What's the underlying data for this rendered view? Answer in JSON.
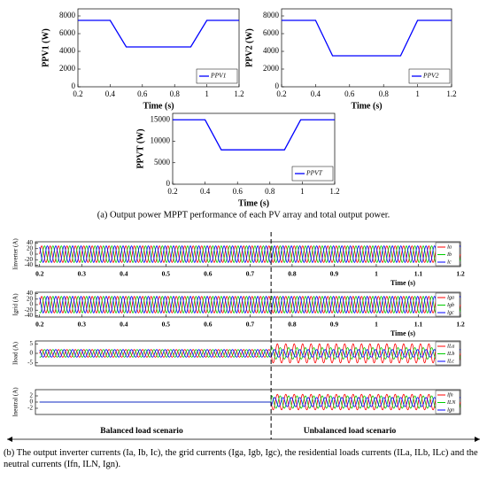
{
  "chart_data": [
    {
      "type": "line",
      "ylabel": "PPV1 (W)",
      "xlabel": "Time (s)",
      "xlim": [
        0.2,
        1.2
      ],
      "xticks": [
        0.2,
        0.4,
        0.6,
        0.8,
        1,
        1.2
      ],
      "ylim": [
        0,
        8800
      ],
      "yticks": [
        0,
        2000,
        4000,
        6000,
        8000
      ],
      "x": [
        0.2,
        0.4,
        0.5,
        0.9,
        1.0,
        1.2
      ],
      "series": [
        {
          "name": "PPV1",
          "color": "#0000ff",
          "values": [
            7500,
            7500,
            4500,
            4500,
            7500,
            7500
          ]
        }
      ]
    },
    {
      "type": "line",
      "ylabel": "PPV2 (W)",
      "xlabel": "Time (s)",
      "xlim": [
        0.2,
        1.2
      ],
      "xticks": [
        0.2,
        0.4,
        0.6,
        0.8,
        1,
        1.2
      ],
      "ylim": [
        0,
        8800
      ],
      "yticks": [
        0,
        2000,
        4000,
        6000,
        8000
      ],
      "x": [
        0.2,
        0.4,
        0.5,
        0.9,
        1.0,
        1.2
      ],
      "series": [
        {
          "name": "PPV2",
          "color": "#0000ff",
          "values": [
            7500,
            7500,
            3500,
            3500,
            7500,
            7500
          ]
        }
      ]
    },
    {
      "type": "line",
      "ylabel": "PPVT (W)",
      "xlabel": "Time (s)",
      "xlim": [
        0.2,
        1.2
      ],
      "xticks": [
        0.2,
        0.4,
        0.6,
        0.8,
        1,
        1.2
      ],
      "ylim": [
        0,
        16500
      ],
      "yticks": [
        0,
        5000,
        10000,
        15000
      ],
      "x": [
        0.2,
        0.4,
        0.5,
        0.89,
        0.99,
        1.2
      ],
      "series": [
        {
          "name": "PPVT",
          "color": "#0000ff",
          "values": [
            15000,
            15000,
            8000,
            8000,
            15000,
            15000
          ]
        }
      ]
    },
    {
      "type": "sine",
      "ylabel": "Iinverter (A)",
      "xlabel": "Time (s)",
      "xlim": [
        0.19,
        1.2
      ],
      "xticks": [
        0.2,
        0.3,
        0.4,
        0.5,
        0.6,
        0.7,
        0.8,
        0.9,
        1,
        1.1,
        1.2
      ],
      "ylim": [
        -45,
        45
      ],
      "yticks": [
        -40,
        -20,
        0,
        20,
        40
      ],
      "frequency": 50,
      "x": [
        0.2,
        0.75,
        1.2
      ],
      "series": [
        {
          "name": "Ia",
          "color": "#ff0000",
          "phase": 0,
          "amplitude": [
            30,
            30
          ]
        },
        {
          "name": "Ib",
          "color": "#00cc00",
          "phase": -120,
          "amplitude": [
            30,
            30
          ]
        },
        {
          "name": "Ic",
          "color": "#0000ff",
          "phase": 120,
          "amplitude": [
            30,
            30
          ]
        }
      ]
    },
    {
      "type": "sine",
      "ylabel": "Igrid (A)",
      "xlabel": "Time (s)",
      "xlim": [
        0.19,
        1.2
      ],
      "xticks": [
        0.2,
        0.3,
        0.4,
        0.5,
        0.6,
        0.7,
        0.8,
        0.9,
        1,
        1.1,
        1.2
      ],
      "ylim": [
        -45,
        45
      ],
      "yticks": [
        -40,
        -20,
        0,
        20,
        40
      ],
      "frequency": 50,
      "x": [
        0.2,
        0.75,
        1.2
      ],
      "series": [
        {
          "name": "Iga",
          "color": "#ff0000",
          "phase": 0,
          "amplitude": [
            30,
            30
          ]
        },
        {
          "name": "Igb",
          "color": "#00cc00",
          "phase": -120,
          "amplitude": [
            30,
            30
          ]
        },
        {
          "name": "Igc",
          "color": "#0000ff",
          "phase": 120,
          "amplitude": [
            30,
            30
          ]
        }
      ]
    },
    {
      "type": "sine",
      "ylabel": "Iload (A)",
      "xlim": [
        0.19,
        1.2
      ],
      "ylim": [
        -6.5,
        6.5
      ],
      "yticks": [
        -5,
        0,
        5
      ],
      "frequency": 50,
      "x": [
        0.2,
        0.75,
        1.2
      ],
      "series": [
        {
          "name": "ILa",
          "color": "#ff0000",
          "phase": 0,
          "amplitude": [
            2,
            5
          ]
        },
        {
          "name": "ILb",
          "color": "#00cc00",
          "phase": -120,
          "amplitude": [
            2,
            3
          ]
        },
        {
          "name": "ILc",
          "color": "#0000ff",
          "phase": 120,
          "amplitude": [
            2,
            2
          ]
        }
      ]
    },
    {
      "type": "sine",
      "ylabel": "Ineutral (A)",
      "xlim": [
        0.19,
        1.2
      ],
      "ylim": [
        -4,
        4
      ],
      "yticks": [
        -2,
        0,
        2
      ],
      "frequency": 50,
      "x": [
        0.2,
        0.75,
        1.2
      ],
      "series": [
        {
          "name": "Ifn",
          "color": "#ff0000",
          "phase": 0,
          "amplitude": [
            0,
            2.5
          ]
        },
        {
          "name": "ILN",
          "color": "#00cc00",
          "phase": -120,
          "amplitude": [
            0,
            2
          ]
        },
        {
          "name": "Ign",
          "color": "#0000ff",
          "phase": 120,
          "amplitude": [
            0,
            1.5
          ]
        }
      ]
    }
  ],
  "split_time": 0.75,
  "scenarios": {
    "balanced": "Balanced load scenario",
    "unbalanced": "Unbalanced load scenario"
  },
  "captions": {
    "a": "(a) Output power MPPT performance of each PV array and total output power.",
    "b": "(b) The output inverter currents (Ia, Ib, Ic), the grid currents (Iga, Igb, Igc), the residential loads currents (ILa, ILb, ILc) and the neutral currents (Ifn, ILN, Ign)."
  }
}
